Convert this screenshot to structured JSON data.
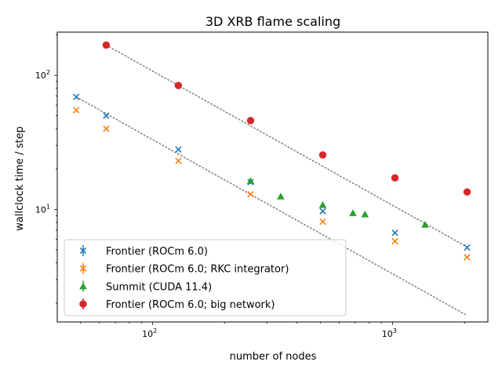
{
  "chart_data": {
    "type": "scatter",
    "title": "3D XRB flame scaling",
    "xlabel": "number of nodes",
    "ylabel": "wallclock time / step",
    "xscale": "log",
    "yscale": "log",
    "xlim": [
      40,
      2500
    ],
    "ylim": [
      1.45,
      210
    ],
    "xticks": [
      {
        "value": 100,
        "base": "10",
        "exp": "2"
      },
      {
        "value": 1000,
        "base": "10",
        "exp": "3"
      }
    ],
    "yticks": [
      {
        "value": 10,
        "base": "10",
        "exp": "1"
      },
      {
        "value": 100,
        "base": "10",
        "exp": "2"
      }
    ],
    "legend_position": "lower-left",
    "series": [
      {
        "name": "Frontier (ROCm 6.0)",
        "marker": "x",
        "color": "#1f77b4",
        "points": [
          [
            48,
            69
          ],
          [
            64,
            50
          ],
          [
            128,
            28
          ],
          [
            256,
            16
          ],
          [
            512,
            9.7
          ],
          [
            1024,
            6.7
          ],
          [
            2048,
            5.2
          ]
        ]
      },
      {
        "name": "Frontier (ROCm 6.0; RKC integrator)",
        "marker": "x",
        "color": "#ff7f0e",
        "points": [
          [
            48,
            55
          ],
          [
            64,
            40
          ],
          [
            128,
            23
          ],
          [
            256,
            13
          ],
          [
            512,
            8.1
          ],
          [
            1024,
            5.8
          ],
          [
            2048,
            4.4
          ]
        ]
      },
      {
        "name": "Summit (CUDA 11.4)",
        "marker": "triangle",
        "color": "#2ca02c",
        "points": [
          [
            256,
            16.3
          ],
          [
            342,
            12.5
          ],
          [
            512,
            10.8
          ],
          [
            684,
            9.4
          ],
          [
            768,
            9.2
          ],
          [
            1368,
            7.7
          ]
        ]
      },
      {
        "name": "Frontier (ROCm 6.0; big network)",
        "marker": "circle",
        "color": "#d62728",
        "points": [
          [
            64,
            168
          ],
          [
            128,
            84
          ],
          [
            256,
            46
          ],
          [
            512,
            25.5
          ],
          [
            1024,
            17.2
          ],
          [
            2048,
            13.5
          ]
        ]
      }
    ],
    "reference_lines": [
      {
        "color": "#808080",
        "style": "dotted",
        "points": [
          [
            64,
            168
          ],
          [
            2048,
            5.25
          ]
        ]
      },
      {
        "color": "#808080",
        "style": "dotted",
        "points": [
          [
            48,
            69
          ],
          [
            2048,
            1.62
          ]
        ]
      }
    ]
  }
}
